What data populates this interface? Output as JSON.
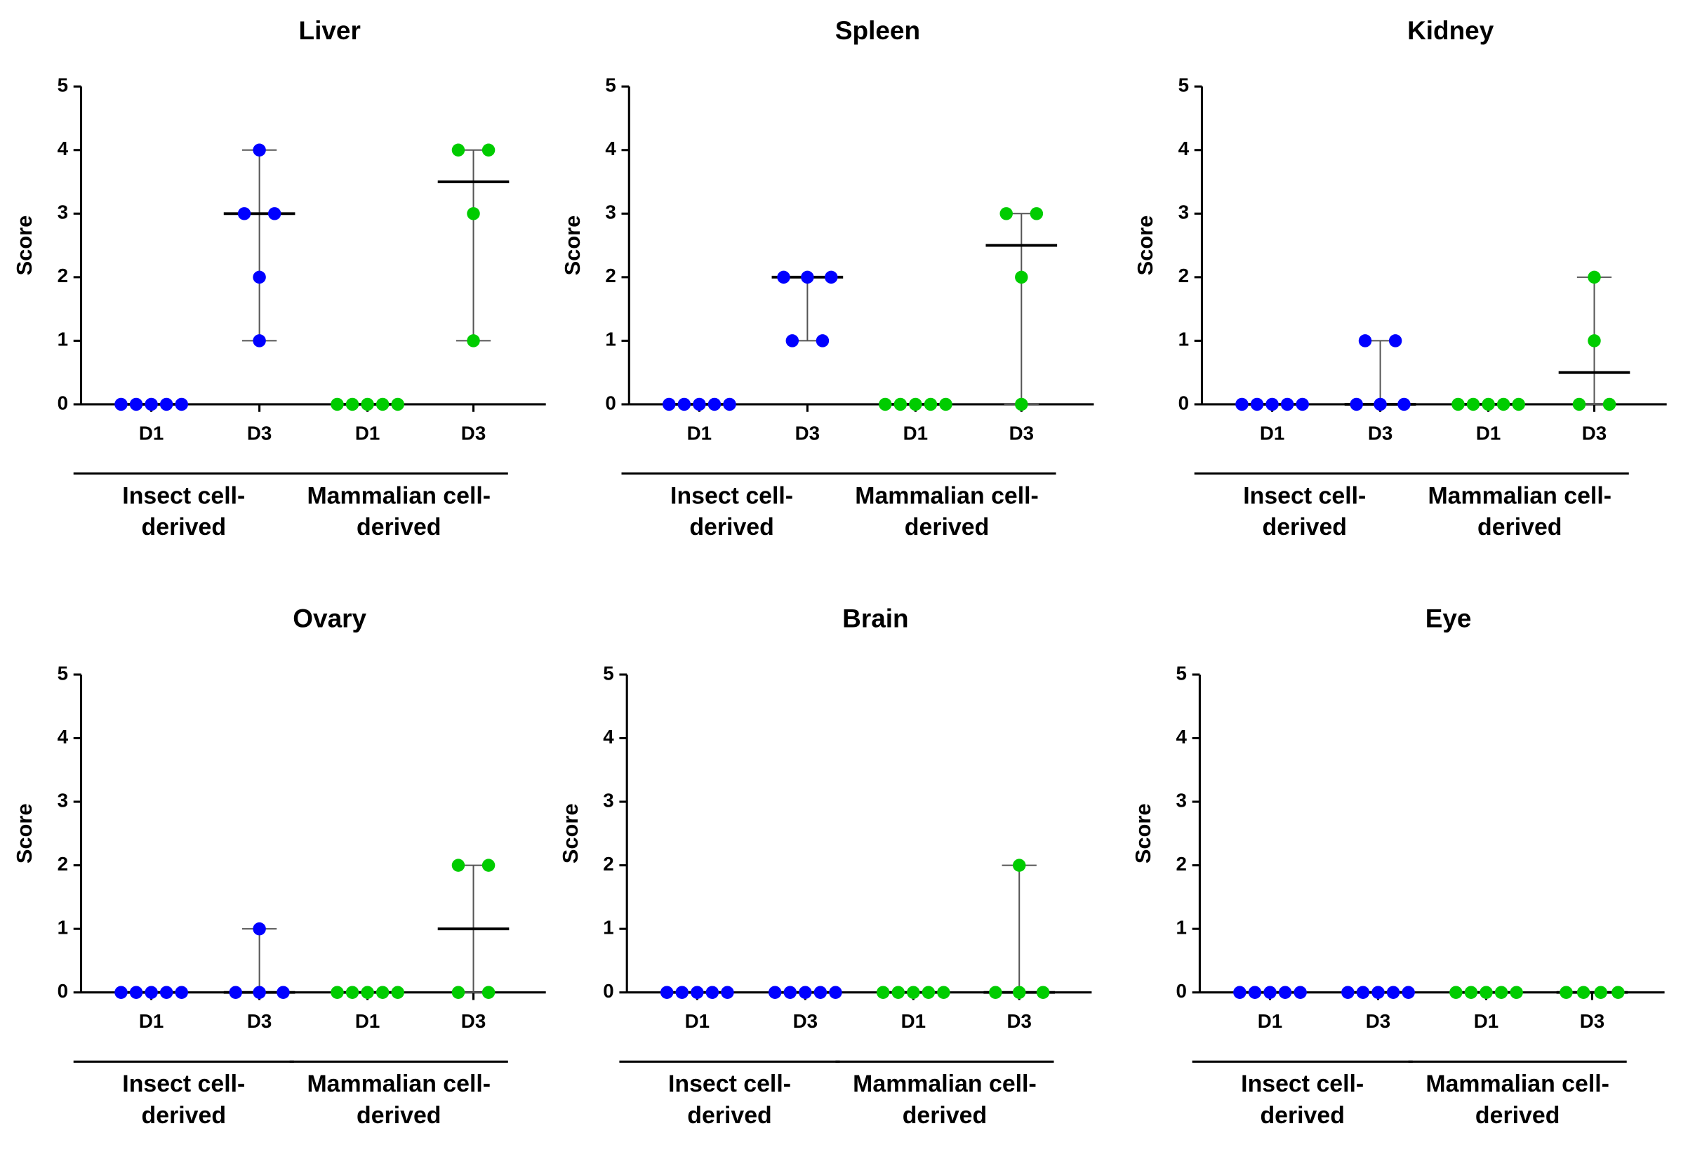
{
  "chart_data": [
    {
      "type": "scatter",
      "title": "Liver",
      "ylabel": "Score",
      "ylim": [
        0,
        5
      ],
      "yticks": [
        0,
        1,
        2,
        3,
        4,
        5
      ],
      "groups": [
        {
          "label": [
            "Insect cell-",
            "derived"
          ],
          "color": "#0000ff",
          "categories": [
            "D1",
            "D3"
          ],
          "values": [
            [
              0,
              0,
              0,
              0,
              0
            ],
            [
              4,
              3,
              3,
              2,
              1
            ]
          ],
          "medians": [
            0,
            3
          ],
          "ranges": [
            [
              0,
              0
            ],
            [
              1,
              4
            ]
          ]
        },
        {
          "label": [
            "Mammalian cell-",
            "derived"
          ],
          "color": "#00cc00",
          "categories": [
            "D1",
            "D3"
          ],
          "values": [
            [
              0,
              0,
              0,
              0,
              0
            ],
            [
              4,
              4,
              3,
              1
            ]
          ],
          "medians": [
            0,
            3.5
          ],
          "ranges": [
            [
              0,
              0
            ],
            [
              1,
              4
            ]
          ]
        }
      ]
    },
    {
      "type": "scatter",
      "title": "Spleen",
      "ylabel": "Score",
      "ylim": [
        0,
        5
      ],
      "yticks": [
        0,
        1,
        2,
        3,
        4,
        5
      ],
      "groups": [
        {
          "label": [
            "Insect cell-",
            "derived"
          ],
          "color": "#0000ff",
          "categories": [
            "D1",
            "D3"
          ],
          "values": [
            [
              0,
              0,
              0,
              0,
              0
            ],
            [
              2,
              2,
              2,
              1,
              1
            ]
          ],
          "medians": [
            0,
            2
          ],
          "ranges": [
            [
              0,
              0
            ],
            [
              1,
              2
            ]
          ]
        },
        {
          "label": [
            "Mammalian cell-",
            "derived"
          ],
          "color": "#00cc00",
          "categories": [
            "D1",
            "D3"
          ],
          "values": [
            [
              0,
              0,
              0,
              0,
              0
            ],
            [
              3,
              3,
              2,
              0
            ]
          ],
          "medians": [
            0,
            2.5
          ],
          "ranges": [
            [
              0,
              0
            ],
            [
              0,
              3
            ]
          ]
        }
      ]
    },
    {
      "type": "scatter",
      "title": "Kidney",
      "ylabel": "Score",
      "ylim": [
        0,
        5
      ],
      "yticks": [
        0,
        1,
        2,
        3,
        4,
        5
      ],
      "groups": [
        {
          "label": [
            "Insect cell-",
            "derived"
          ],
          "color": "#0000ff",
          "categories": [
            "D1",
            "D3"
          ],
          "values": [
            [
              0,
              0,
              0,
              0,
              0
            ],
            [
              1,
              1,
              0,
              0,
              0
            ]
          ],
          "medians": [
            0,
            0
          ],
          "ranges": [
            [
              0,
              0
            ],
            [
              0,
              1
            ]
          ]
        },
        {
          "label": [
            "Mammalian cell-",
            "derived"
          ],
          "color": "#00cc00",
          "categories": [
            "D1",
            "D3"
          ],
          "values": [
            [
              0,
              0,
              0,
              0,
              0
            ],
            [
              2,
              1,
              0,
              0
            ]
          ],
          "medians": [
            0,
            0.5
          ],
          "ranges": [
            [
              0,
              0
            ],
            [
              0,
              2
            ]
          ]
        }
      ]
    },
    {
      "type": "scatter",
      "title": "Ovary",
      "ylabel": "Score",
      "ylim": [
        0,
        5
      ],
      "yticks": [
        0,
        1,
        2,
        3,
        4,
        5
      ],
      "groups": [
        {
          "label": [
            "Insect cell-",
            "derived"
          ],
          "color": "#0000ff",
          "categories": [
            "D1",
            "D3"
          ],
          "values": [
            [
              0,
              0,
              0,
              0,
              0
            ],
            [
              1,
              0,
              0,
              0
            ]
          ],
          "medians": [
            0,
            0
          ],
          "ranges": [
            [
              0,
              0
            ],
            [
              0,
              1
            ]
          ]
        },
        {
          "label": [
            "Mammalian cell-",
            "derived"
          ],
          "color": "#00cc00",
          "categories": [
            "D1",
            "D3"
          ],
          "values": [
            [
              0,
              0,
              0,
              0,
              0
            ],
            [
              2,
              2,
              0,
              0
            ]
          ],
          "medians": [
            0,
            1
          ],
          "ranges": [
            [
              0,
              0
            ],
            [
              0,
              2
            ]
          ]
        }
      ]
    },
    {
      "type": "scatter",
      "title": "Brain",
      "ylabel": "Score",
      "ylim": [
        0,
        5
      ],
      "yticks": [
        0,
        1,
        2,
        3,
        4,
        5
      ],
      "groups": [
        {
          "label": [
            "Insect cell-",
            "derived"
          ],
          "color": "#0000ff",
          "categories": [
            "D1",
            "D3"
          ],
          "values": [
            [
              0,
              0,
              0,
              0,
              0
            ],
            [
              0,
              0,
              0,
              0,
              0
            ]
          ],
          "medians": [
            0,
            0
          ],
          "ranges": [
            [
              0,
              0
            ],
            [
              0,
              0
            ]
          ]
        },
        {
          "label": [
            "Mammalian cell-",
            "derived"
          ],
          "color": "#00cc00",
          "categories": [
            "D1",
            "D3"
          ],
          "values": [
            [
              0,
              0,
              0,
              0,
              0
            ],
            [
              2,
              0,
              0,
              0
            ]
          ],
          "medians": [
            0,
            0
          ],
          "ranges": [
            [
              0,
              0
            ],
            [
              0,
              2
            ]
          ]
        }
      ]
    },
    {
      "type": "scatter",
      "title": "Eye",
      "ylabel": "Score",
      "ylim": [
        0,
        5
      ],
      "yticks": [
        0,
        1,
        2,
        3,
        4,
        5
      ],
      "groups": [
        {
          "label": [
            "Insect cell-",
            "derived"
          ],
          "color": "#0000ff",
          "categories": [
            "D1",
            "D3"
          ],
          "values": [
            [
              0,
              0,
              0,
              0,
              0
            ],
            [
              0,
              0,
              0,
              0,
              0
            ]
          ],
          "medians": [
            0,
            0
          ],
          "ranges": [
            [
              0,
              0
            ],
            [
              0,
              0
            ]
          ]
        },
        {
          "label": [
            "Mammalian cell-",
            "derived"
          ],
          "color": "#00cc00",
          "categories": [
            "D1",
            "D3"
          ],
          "values": [
            [
              0,
              0,
              0,
              0,
              0
            ],
            [
              0,
              0,
              0,
              0
            ]
          ],
          "medians": [
            0,
            0
          ],
          "ranges": [
            [
              0,
              0
            ],
            [
              0,
              0
            ]
          ]
        }
      ]
    }
  ]
}
